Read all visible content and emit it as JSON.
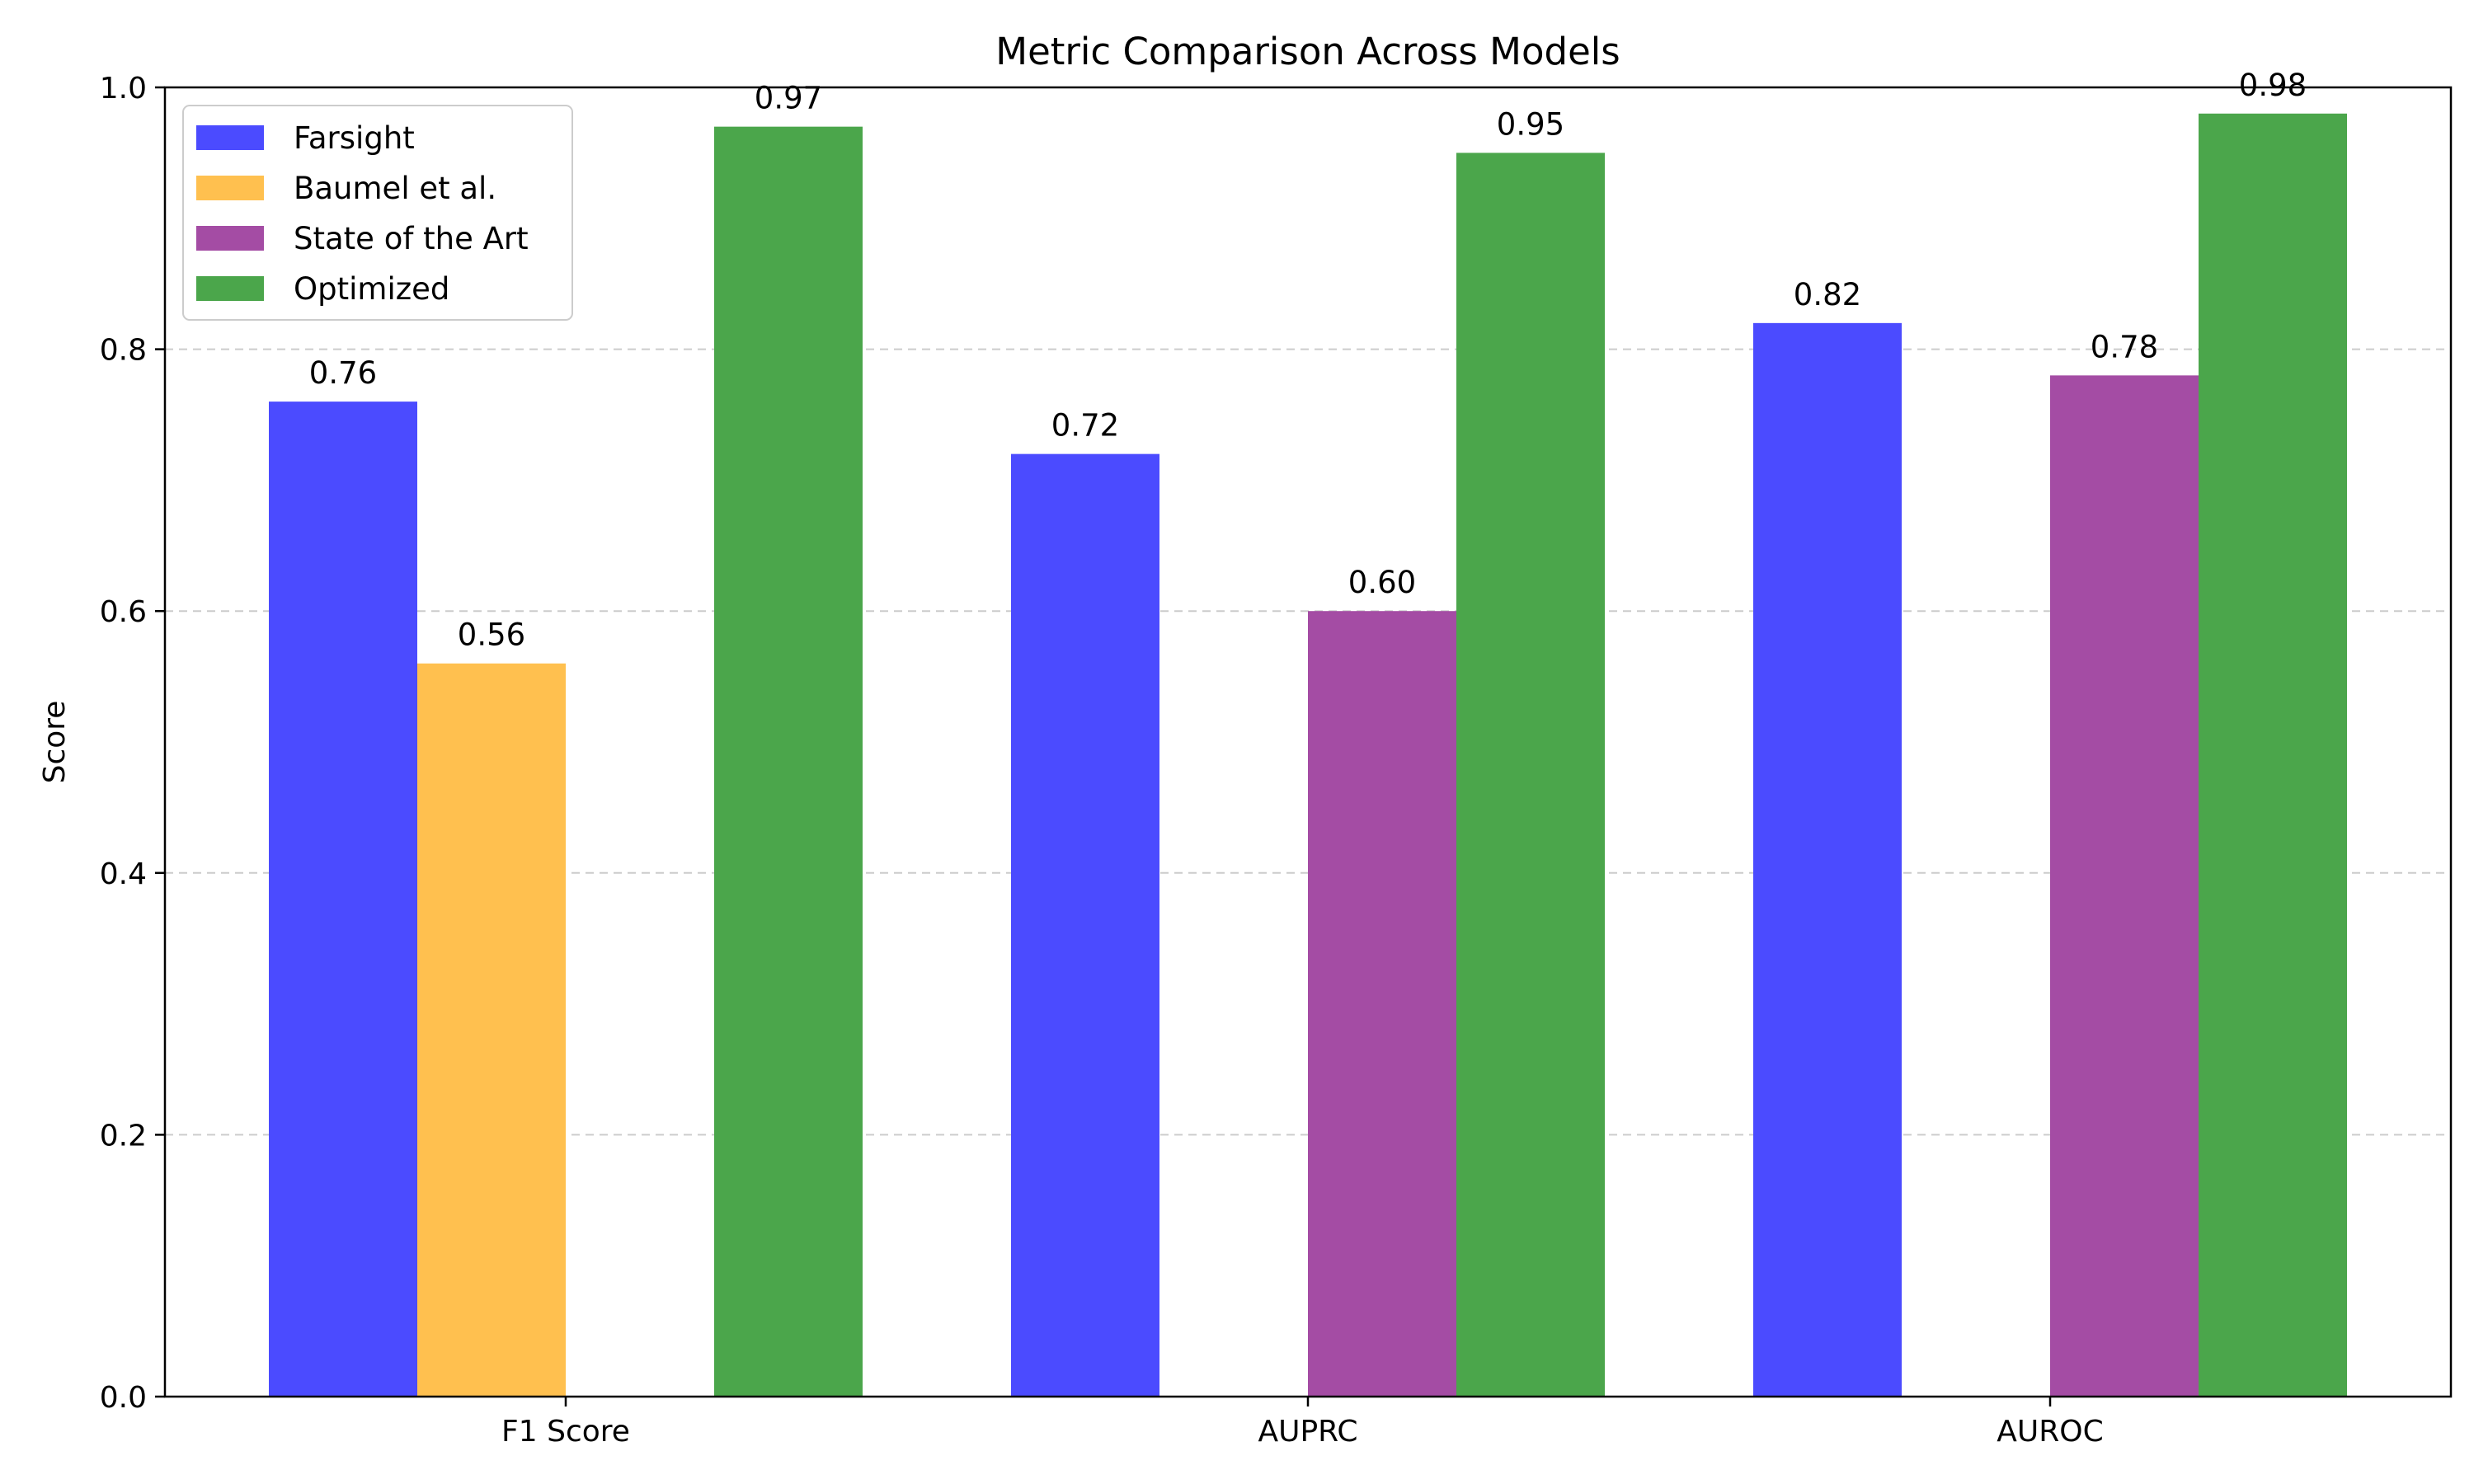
{
  "chart_data": {
    "type": "bar",
    "title": "Metric Comparison Across Models",
    "xlabel": "",
    "ylabel": "Score",
    "categories": [
      "F1 Score",
      "AUPRC",
      "AUROC"
    ],
    "ylim": [
      0,
      1.0
    ],
    "yticks": [
      "0.0",
      "0.2",
      "0.4",
      "0.6",
      "0.8",
      "1.0"
    ],
    "grid": "horizontal-dashed",
    "legend_placement": "top-left",
    "series": [
      {
        "name": "Farsight",
        "color": "#4b4bff",
        "values": [
          0.76,
          0.72,
          0.82
        ],
        "labels": [
          "0.76",
          "0.72",
          "0.82"
        ]
      },
      {
        "name": "Baumel et al.",
        "color": "#ffc04f",
        "values": [
          0.56,
          null,
          null
        ],
        "labels": [
          "0.56",
          "",
          ""
        ]
      },
      {
        "name": "State of the Art",
        "color": "#a44ca4",
        "values": [
          null,
          0.6,
          0.78
        ],
        "labels": [
          "",
          "0.60",
          "0.78"
        ]
      },
      {
        "name": "Optimized",
        "color": "#4ba64b",
        "values": [
          0.97,
          0.95,
          0.98
        ],
        "labels": [
          "0.97",
          "0.95",
          "0.98"
        ]
      }
    ]
  }
}
